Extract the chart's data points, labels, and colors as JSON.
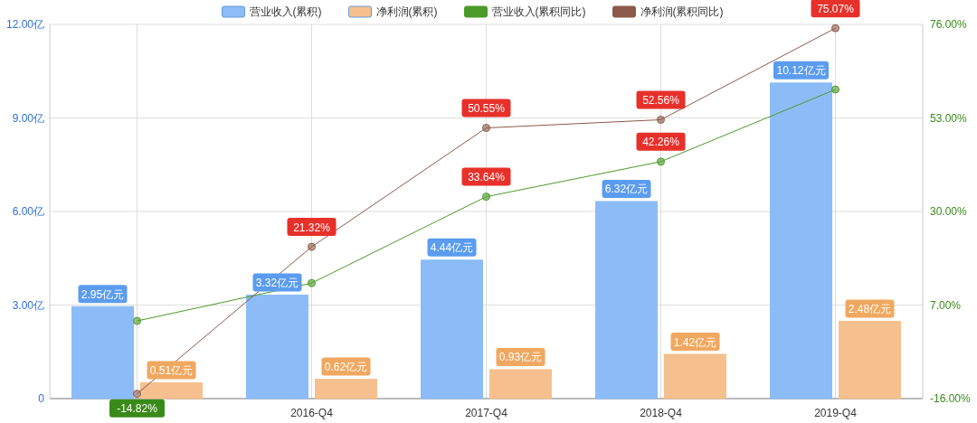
{
  "chart_data": {
    "type": "bar",
    "categories": [
      null,
      "2016-Q4",
      "2017-Q4",
      "2018-Q4",
      "2019-Q4"
    ],
    "series": [
      {
        "name": "营业收入(累积)",
        "color": "#8bbcf7",
        "values": [
          2.95,
          3.32,
          4.44,
          6.32,
          10.12
        ],
        "value_labels": [
          "2.95亿元",
          "3.32亿元",
          "4.44亿元",
          "6.32亿元",
          "10.12亿元"
        ]
      },
      {
        "name": "净利润(累积)",
        "color": "#f5c08e",
        "values": [
          0.51,
          0.62,
          0.93,
          1.42,
          2.48
        ],
        "value_labels": [
          "0.51亿元",
          "0.62亿元",
          "0.93亿元",
          "1.42亿元",
          "2.48亿元"
        ]
      },
      {
        "name": "营业收入(累积同比)",
        "type": "line",
        "axis": "y2",
        "color": "#4c9a2a",
        "values": [
          3.1,
          12.4,
          33.64,
          42.26,
          60.0
        ],
        "value_labels": [
          null,
          null,
          "33.64%",
          "42.26%",
          null
        ]
      },
      {
        "name": "净利润(累积同比)",
        "type": "line",
        "axis": "y2",
        "color": "#8b5a4a",
        "values": [
          -14.82,
          21.32,
          50.55,
          52.56,
          75.07
        ],
        "value_labels": [
          "-14.82%",
          "21.32%",
          "50.55%",
          "52.56%",
          "75.07%"
        ]
      }
    ],
    "ylim": [
      0,
      12
    ],
    "yticks": [
      {
        "value": 0,
        "label": "0"
      },
      {
        "value": 3,
        "label": "3.00亿"
      },
      {
        "value": 6,
        "label": "6.00亿"
      },
      {
        "value": 9,
        "label": "9.00亿"
      },
      {
        "value": 12,
        "label": "12.00亿"
      }
    ],
    "y2lim": [
      -16,
      76
    ],
    "y2ticks": [
      {
        "value": -16,
        "label": "-16.00%"
      },
      {
        "value": 7,
        "label": "7.00%"
      },
      {
        "value": 30,
        "label": "30.00%"
      },
      {
        "value": 53,
        "label": "53.00%"
      },
      {
        "value": 76,
        "label": "76.00%"
      }
    ],
    "grid": true,
    "legend": "top",
    "marker": "circle"
  }
}
